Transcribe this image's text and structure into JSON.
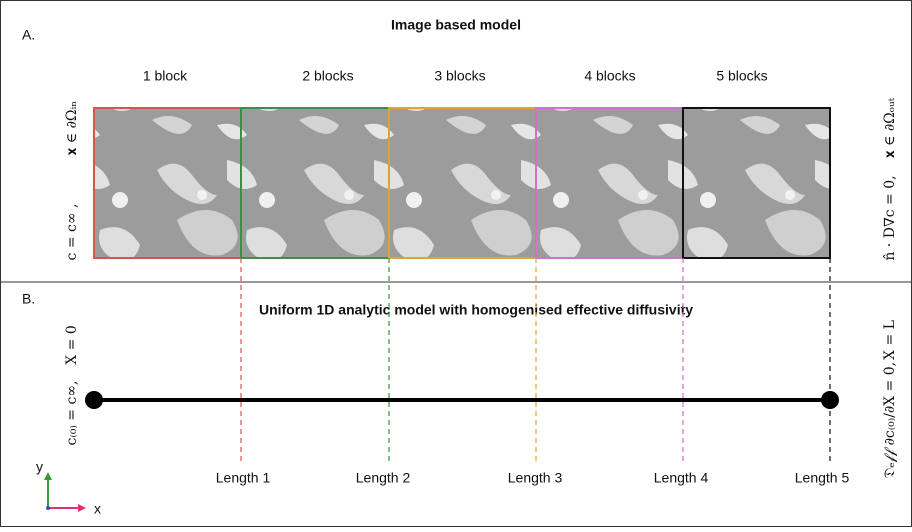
{
  "panel_a": {
    "label": "A.",
    "title": "Image based model",
    "blocks": [
      "1 block",
      "2 blocks",
      "3 blocks",
      "4 blocks",
      "5 blocks"
    ],
    "inlet_condition": "c = c∞ ,",
    "inlet_domain": "𝐱 ∈ ∂Ωᵢₙ",
    "outlet_condition": "n̂ · D∇c = 0,",
    "outlet_domain": "𝐱 ∈ ∂Ωₒᵤₜ"
  },
  "panel_b": {
    "label": "B.",
    "title": "Uniform 1D analytic model with  homogenised effective diffusivity",
    "inlet_position": "X = 0",
    "inlet_condition": "c₍₀₎ = c∞,",
    "outlet_position": "X = L",
    "outlet_condition": "𝔇ₑ𝒻𝒻 ∂c₍₀₎/∂X = 0,",
    "lengths": [
      "Length 1",
      "Length 2",
      "Length 3",
      "Length 4",
      "Length 5"
    ],
    "axes": {
      "y": "y",
      "x": "x"
    }
  }
}
